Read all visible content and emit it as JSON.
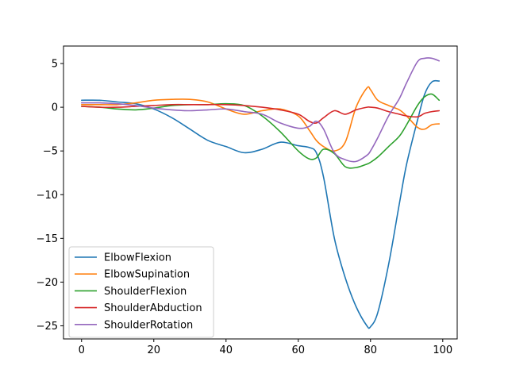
{
  "chart_data": {
    "type": "line",
    "title": "",
    "xlabel": "",
    "ylabel": "",
    "xlim": [
      -5,
      104
    ],
    "ylim": [
      -26.5,
      7
    ],
    "xticks": [
      0,
      20,
      40,
      60,
      80,
      100
    ],
    "yticks": [
      5,
      0,
      -5,
      -10,
      -15,
      -20,
      -25
    ],
    "ytick_labels": [
      "5",
      "0",
      "−5",
      "−10",
      "−15",
      "−20",
      "−25"
    ],
    "grid": false,
    "legend_position": "lower-left",
    "x": [
      0,
      5,
      10,
      15,
      20,
      25,
      30,
      35,
      40,
      45,
      50,
      55,
      60,
      63,
      65,
      67,
      70,
      73,
      76,
      79,
      80,
      82,
      85,
      88,
      90,
      93,
      95,
      97,
      99
    ],
    "series": [
      {
        "name": "ElbowFlexion",
        "color": "#1f77b4",
        "values": [
          0.8,
          0.8,
          0.6,
          0.4,
          -0.2,
          -1.2,
          -2.5,
          -3.8,
          -4.5,
          -5.2,
          -4.8,
          -4.0,
          -4.4,
          -4.6,
          -5.2,
          -8.0,
          -15.0,
          -19.5,
          -22.8,
          -25.0,
          -25.1,
          -23.5,
          -18.0,
          -11.0,
          -6.5,
          -1.5,
          1.5,
          2.9,
          3.0
        ]
      },
      {
        "name": "ElbowSupination",
        "color": "#ff7f0e",
        "values": [
          0.3,
          0.3,
          0.3,
          0.5,
          0.8,
          0.9,
          0.9,
          0.6,
          -0.2,
          -0.8,
          -0.4,
          -0.2,
          -1.0,
          -2.6,
          -3.8,
          -4.5,
          -5.0,
          -4.0,
          0.0,
          2.2,
          2.0,
          0.8,
          0.2,
          -0.3,
          -1.0,
          -2.3,
          -2.5,
          -2.0,
          -1.9
        ]
      },
      {
        "name": "ShoulderFlexion",
        "color": "#2ca02c",
        "values": [
          0.1,
          0.0,
          -0.2,
          -0.3,
          -0.1,
          0.2,
          0.3,
          0.3,
          0.4,
          0.2,
          -1.0,
          -2.8,
          -5.0,
          -5.9,
          -5.8,
          -4.8,
          -5.3,
          -6.8,
          -6.9,
          -6.5,
          -6.3,
          -5.7,
          -4.5,
          -3.3,
          -2.0,
          0.2,
          1.2,
          1.5,
          0.8
        ]
      },
      {
        "name": "ShoulderAbduction",
        "color": "#d62728",
        "values": [
          0.1,
          0.0,
          0.0,
          0.1,
          0.2,
          0.3,
          0.3,
          0.3,
          0.3,
          0.2,
          0.0,
          -0.3,
          -0.8,
          -1.6,
          -1.8,
          -1.2,
          -0.4,
          -0.8,
          -0.3,
          0.0,
          0.0,
          -0.1,
          -0.5,
          -0.8,
          -1.0,
          -1.1,
          -0.7,
          -0.5,
          -0.4
        ]
      },
      {
        "name": "ShoulderRotation",
        "color": "#9467bd",
        "values": [
          0.5,
          0.5,
          0.4,
          0.2,
          -0.1,
          -0.3,
          -0.4,
          -0.3,
          -0.2,
          -0.5,
          -0.8,
          -1.8,
          -2.4,
          -2.2,
          -1.6,
          -2.5,
          -5.2,
          -6.0,
          -6.2,
          -5.5,
          -5.0,
          -3.5,
          -1.0,
          1.0,
          2.8,
          5.2,
          5.6,
          5.6,
          5.3
        ]
      }
    ]
  }
}
